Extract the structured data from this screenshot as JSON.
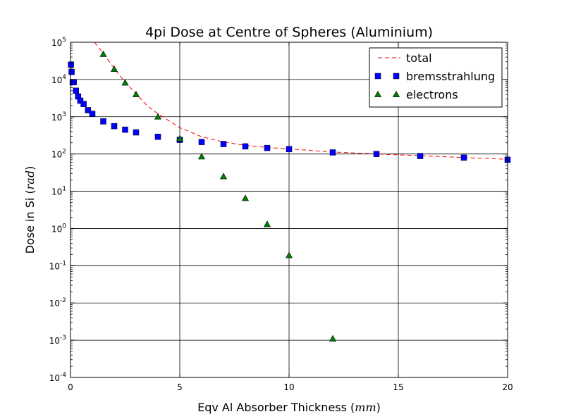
{
  "chart_data": {
    "type": "scatter",
    "title": "4pi Dose at Centre of Spheres (Aluminium)",
    "xlabel": {
      "text": "Eqv Al Absorber Thickness (",
      "math": "mm",
      "close": ")"
    },
    "ylabel": {
      "text": "Dose in Si (",
      "math": "rad",
      "close": ")"
    },
    "xlim": [
      0,
      20
    ],
    "ylim": [
      0.0001,
      100000
    ],
    "yscale": "log",
    "grid": true,
    "legend_position": "top-right",
    "x_ticks": [
      0,
      5,
      10,
      15,
      20
    ],
    "y_ticks": [
      {
        "value": 0.0001,
        "base": "10",
        "exp": "-4"
      },
      {
        "value": 0.001,
        "base": "10",
        "exp": "-3"
      },
      {
        "value": 0.01,
        "base": "10",
        "exp": "-2"
      },
      {
        "value": 0.1,
        "base": "10",
        "exp": "-1"
      },
      {
        "value": 1,
        "base": "10",
        "exp": "0"
      },
      {
        "value": 10,
        "base": "10",
        "exp": "1"
      },
      {
        "value": 100,
        "base": "10",
        "exp": "2"
      },
      {
        "value": 1000,
        "base": "10",
        "exp": "3"
      },
      {
        "value": 10000,
        "base": "10",
        "exp": "4"
      },
      {
        "value": 100000,
        "base": "10",
        "exp": "5"
      }
    ],
    "series": [
      {
        "name": "total",
        "style": "dashed-line",
        "color": "#ff0000",
        "x": [
          1.1,
          1.5,
          2.0,
          2.5,
          3.0,
          3.5,
          4.0,
          5.0,
          6.0,
          7.0,
          8.0,
          9.0,
          10.0,
          12.0,
          14.0,
          16.0,
          18.0,
          20.0
        ],
        "y": [
          100000,
          50000,
          20000,
          8500,
          4100,
          2000,
          1200,
          510,
          290,
          210,
          170,
          150,
          137,
          113,
          100,
          90,
          80,
          72
        ]
      },
      {
        "name": "bremsstrahlung",
        "style": "square-markers",
        "color": "#0000ff",
        "x": [
          0.02,
          0.05,
          0.1,
          0.15,
          0.25,
          0.35,
          0.45,
          0.6,
          0.8,
          1.0,
          1.5,
          2.0,
          2.5,
          3.0,
          4.0,
          5.0,
          6.0,
          7.0,
          8.0,
          9.0,
          10.0,
          12.0,
          14.0,
          16.0,
          18.0,
          20.0
        ],
        "y": [
          25000,
          16000,
          8500,
          8500,
          5000,
          3500,
          2700,
          2200,
          1500,
          1200,
          750,
          560,
          450,
          380,
          290,
          240,
          210,
          185,
          160,
          145,
          135,
          110,
          100,
          88,
          80,
          70
        ]
      },
      {
        "name": "electrons",
        "style": "triangle-markers",
        "color": "#008000",
        "x": [
          1.5,
          2.0,
          2.5,
          3.0,
          4.0,
          5.0,
          6.0,
          7.0,
          8.0,
          9.0,
          10.0,
          12.0
        ],
        "y": [
          48000,
          19000,
          8200,
          4000,
          1000,
          260,
          85,
          25,
          6.5,
          1.3,
          0.19,
          0.0011
        ]
      }
    ]
  }
}
